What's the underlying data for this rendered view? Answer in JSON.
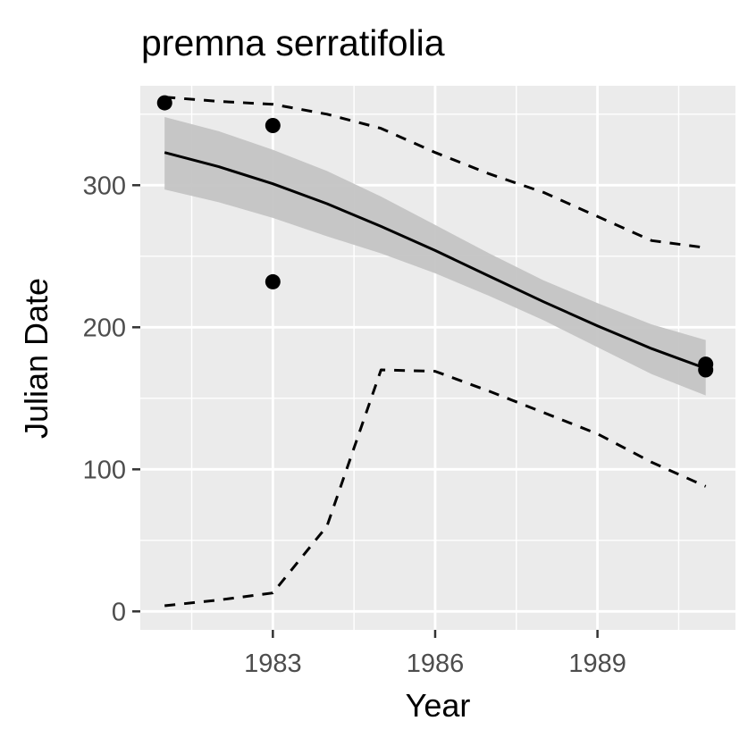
{
  "chart_data": {
    "type": "line",
    "title": "premna serratifolia",
    "xlabel": "Year",
    "ylabel": "Julian Date",
    "xlim": [
      1980.55,
      1991.55
    ],
    "ylim": [
      -13,
      370
    ],
    "x_ticks": [
      1983,
      1986,
      1989
    ],
    "x_minor": [
      1981.5,
      1984.5,
      1987.5,
      1990.5
    ],
    "y_ticks": [
      0,
      100,
      200,
      300
    ],
    "y_minor": [
      50,
      150,
      250,
      350
    ],
    "grid": true,
    "panel_color": "#ebebeb",
    "points": [
      {
        "x": 1981,
        "y": 358
      },
      {
        "x": 1983,
        "y": 342
      },
      {
        "x": 1983,
        "y": 232
      },
      {
        "x": 1991,
        "y": 174
      },
      {
        "x": 1991,
        "y": 170
      }
    ],
    "series": [
      {
        "style": "solid",
        "color": "#000000",
        "x": [
          1981,
          1982,
          1983,
          1984,
          1985,
          1986,
          1987,
          1988,
          1989,
          1990,
          1991
        ],
        "y": [
          323,
          313,
          301,
          287,
          271,
          254,
          236,
          218,
          201,
          185,
          171
        ]
      },
      {
        "style": "dashed",
        "color": "#000000",
        "x": [
          1981,
          1982,
          1983,
          1984,
          1985,
          1986,
          1987,
          1988,
          1989,
          1990,
          1991
        ],
        "y": [
          362,
          359,
          357,
          350,
          340,
          323,
          308,
          295,
          278,
          261,
          256
        ]
      },
      {
        "style": "dashed",
        "color": "#000000",
        "x": [
          1981,
          1982,
          1983,
          1984,
          1985,
          1986,
          1987,
          1988,
          1989,
          1990,
          1991
        ],
        "y": [
          4,
          8,
          13,
          60,
          170,
          169,
          155,
          140,
          125,
          105,
          88
        ]
      }
    ],
    "ribbon": {
      "color": "#c4c4c4",
      "x": [
        1981,
        1982,
        1983,
        1984,
        1985,
        1986,
        1987,
        1988,
        1989,
        1990,
        1991
      ],
      "lower": [
        297,
        288,
        277,
        264,
        252,
        238,
        222,
        205,
        186,
        167,
        152
      ],
      "upper": [
        348,
        338,
        325,
        310,
        292,
        272,
        252,
        233,
        217,
        202,
        191
      ]
    }
  }
}
